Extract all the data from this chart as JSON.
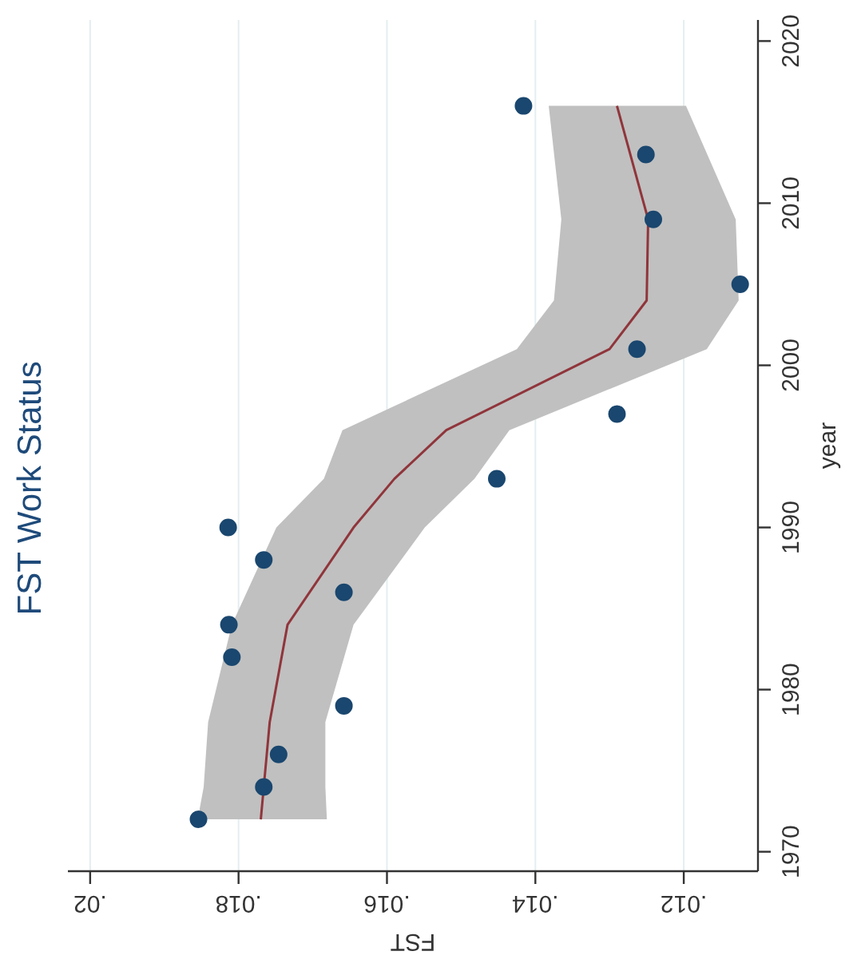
{
  "chart_data": {
    "type": "scatter",
    "title": "FST Work Status",
    "xlabel": "FST",
    "ylabel": "year",
    "orientation": "horizontal",
    "xlim": [
      0.0203,
      0.011
    ],
    "xticks": [
      {
        "value": 0.02,
        "label": ".02"
      },
      {
        "value": 0.018,
        "label": ".018"
      },
      {
        "value": 0.016,
        "label": ".016"
      },
      {
        "value": 0.014,
        "label": ".014"
      },
      {
        "value": 0.012,
        "label": ".012"
      }
    ],
    "ylim": [
      1968.8,
      2021.3
    ],
    "yticks": [
      1970,
      1980,
      1990,
      2000,
      2010,
      2020
    ],
    "grid": "x",
    "series": [
      {
        "type": "line",
        "marker": "none",
        "color": "#90353b",
        "x": [
          1972,
          1974,
          1978,
          1984,
          1990,
          1993,
          1996,
          2001,
          2004,
          2009,
          2016
        ],
        "values": [
          0.0177,
          0.01766,
          0.01758,
          0.01734,
          0.01645,
          0.0159,
          0.0152,
          0.013,
          0.0125,
          0.01248,
          0.0129
        ],
        "lower": [
          0.01681,
          0.01683,
          0.01683,
          0.01645,
          0.01549,
          0.01482,
          0.01435,
          0.01169,
          0.01126,
          0.0113,
          0.01197
        ],
        "upper": [
          0.01855,
          0.01847,
          0.01841,
          0.01809,
          0.01749,
          0.01685,
          0.0166,
          0.01425,
          0.01375,
          0.01365,
          0.01382
        ]
      },
      {
        "marker": "circle",
        "color": "#1a476f",
        "x": [
          1972,
          1974,
          1976,
          1979,
          1982,
          1984,
          1986,
          1988,
          1990,
          1993,
          1997,
          2001,
          2005,
          2009,
          2013,
          2016
        ],
        "values": [
          0.01854,
          0.01766,
          0.01746,
          0.01658,
          0.01809,
          0.01813,
          0.01658,
          0.01766,
          0.01814,
          0.01452,
          0.0129,
          0.01263,
          0.01124,
          0.01241,
          0.01251,
          0.01416
        ]
      }
    ]
  }
}
